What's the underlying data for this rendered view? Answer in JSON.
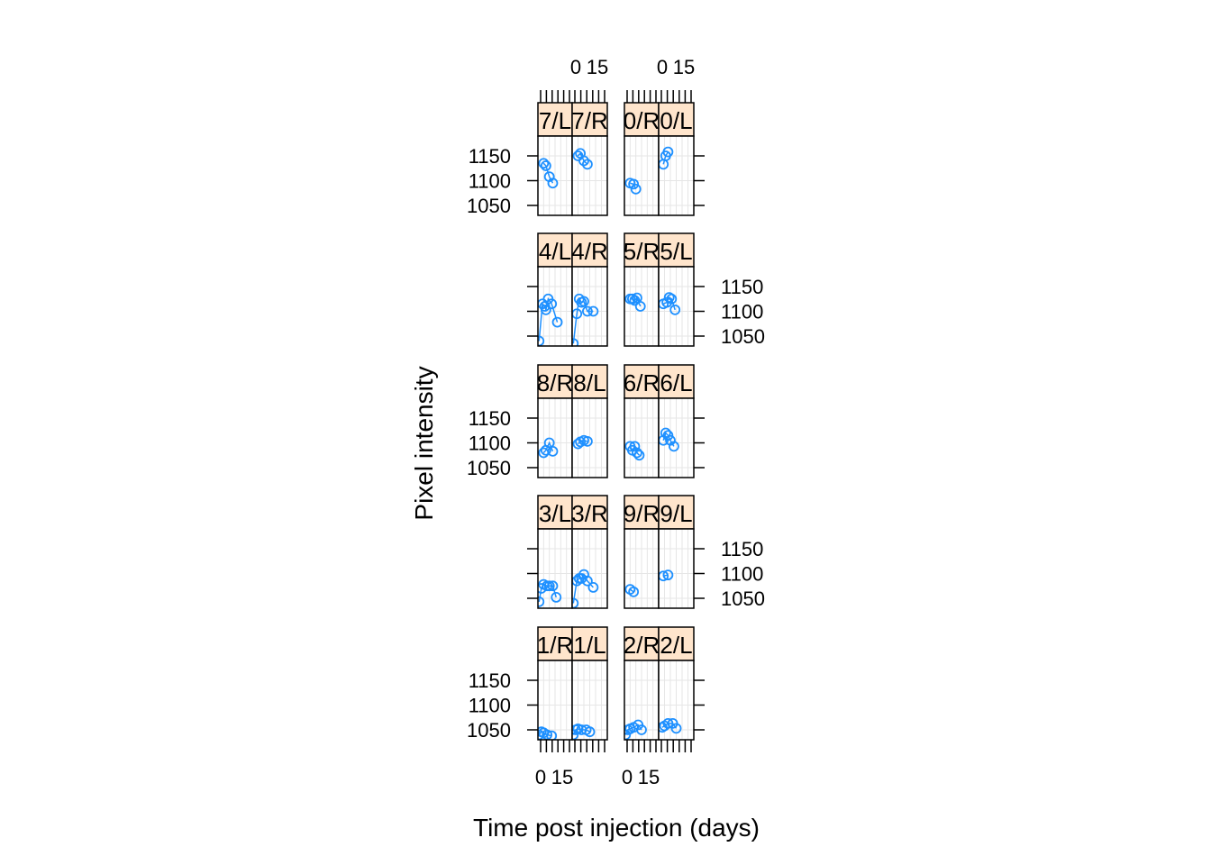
{
  "chart_data": {
    "type": "scatter",
    "xlabel": "Time post injection (days)",
    "ylabel": "Pixel intensity",
    "x_ticks": [
      "0",
      "15"
    ],
    "y_ticks": [
      1050,
      1100,
      1150
    ],
    "ylim": [
      1030,
      1190
    ],
    "xlim": [
      0,
      30
    ],
    "colors": {
      "points": "#1E90FF",
      "strip": "#FFE5CC",
      "grid": "#E6E6E6",
      "frame": "#000000"
    },
    "panels": [
      {
        "label": "1/R",
        "points": [
          {
            "x": 1,
            "y": 1040
          },
          {
            "x": 3,
            "y": 1046
          },
          {
            "x": 5,
            "y": 1044
          },
          {
            "x": 8,
            "y": 1040
          },
          {
            "x": 12,
            "y": 1038
          }
        ]
      },
      {
        "label": "1/L",
        "points": [
          {
            "x": 1,
            "y": 1040
          },
          {
            "x": 3,
            "y": 1050
          },
          {
            "x": 5,
            "y": 1052
          },
          {
            "x": 8,
            "y": 1050
          },
          {
            "x": 12,
            "y": 1050
          },
          {
            "x": 15,
            "y": 1046
          }
        ]
      },
      {
        "label": "2/R",
        "points": [
          {
            "x": 1,
            "y": 1040
          },
          {
            "x": 3,
            "y": 1050
          },
          {
            "x": 5,
            "y": 1052
          },
          {
            "x": 8,
            "y": 1055
          },
          {
            "x": 12,
            "y": 1060
          },
          {
            "x": 15,
            "y": 1050
          }
        ]
      },
      {
        "label": "2/L",
        "points": [
          {
            "x": 3,
            "y": 1055
          },
          {
            "x": 5,
            "y": 1058
          },
          {
            "x": 8,
            "y": 1063
          },
          {
            "x": 12,
            "y": 1063
          },
          {
            "x": 15,
            "y": 1053
          }
        ]
      },
      {
        "label": "3/L",
        "points": [
          {
            "x": 1,
            "y": 1043
          },
          {
            "x": 3,
            "y": 1070
          },
          {
            "x": 5,
            "y": 1078
          },
          {
            "x": 8,
            "y": 1075
          },
          {
            "x": 10,
            "y": 1075
          },
          {
            "x": 13,
            "y": 1075
          },
          {
            "x": 16,
            "y": 1052
          }
        ]
      },
      {
        "label": "3/R",
        "points": [
          {
            "x": 1,
            "y": 1040
          },
          {
            "x": 4,
            "y": 1085
          },
          {
            "x": 6,
            "y": 1090
          },
          {
            "x": 8,
            "y": 1090
          },
          {
            "x": 10,
            "y": 1098
          },
          {
            "x": 13,
            "y": 1085
          },
          {
            "x": 18,
            "y": 1072
          }
        ]
      },
      {
        "label": "9/R",
        "points": [
          {
            "x": 5,
            "y": 1068
          },
          {
            "x": 8,
            "y": 1063
          }
        ]
      },
      {
        "label": "9/L",
        "points": [
          {
            "x": 4,
            "y": 1095
          },
          {
            "x": 8,
            "y": 1097
          }
        ]
      },
      {
        "label": "8/R",
        "points": [
          {
            "x": 5,
            "y": 1080
          },
          {
            "x": 7,
            "y": 1085
          },
          {
            "x": 10,
            "y": 1100
          },
          {
            "x": 13,
            "y": 1083
          }
        ]
      },
      {
        "label": "8/L",
        "points": [
          {
            "x": 5,
            "y": 1098
          },
          {
            "x": 7,
            "y": 1102
          },
          {
            "x": 10,
            "y": 1105
          },
          {
            "x": 13,
            "y": 1103
          }
        ]
      },
      {
        "label": "6/R",
        "points": [
          {
            "x": 5,
            "y": 1093
          },
          {
            "x": 7,
            "y": 1085
          },
          {
            "x": 9,
            "y": 1093
          },
          {
            "x": 11,
            "y": 1080
          },
          {
            "x": 13,
            "y": 1075
          }
        ]
      },
      {
        "label": "6/L",
        "points": [
          {
            "x": 4,
            "y": 1105
          },
          {
            "x": 6,
            "y": 1120
          },
          {
            "x": 8,
            "y": 1115
          },
          {
            "x": 10,
            "y": 1105
          },
          {
            "x": 13,
            "y": 1093
          }
        ]
      },
      {
        "label": "4/L",
        "points": [
          {
            "x": 1,
            "y": 1040
          },
          {
            "x": 4,
            "y": 1115
          },
          {
            "x": 6,
            "y": 1110
          },
          {
            "x": 7,
            "y": 1103
          },
          {
            "x": 9,
            "y": 1125
          },
          {
            "x": 12,
            "y": 1115
          },
          {
            "x": 17,
            "y": 1078
          }
        ]
      },
      {
        "label": "4/R",
        "points": [
          {
            "x": 1,
            "y": 1035
          },
          {
            "x": 4,
            "y": 1095
          },
          {
            "x": 6,
            "y": 1125
          },
          {
            "x": 8,
            "y": 1118
          },
          {
            "x": 10,
            "y": 1120
          },
          {
            "x": 13,
            "y": 1100
          },
          {
            "x": 18,
            "y": 1100
          }
        ]
      },
      {
        "label": "5/R",
        "points": [
          {
            "x": 5,
            "y": 1125
          },
          {
            "x": 7,
            "y": 1125
          },
          {
            "x": 9,
            "y": 1122
          },
          {
            "x": 11,
            "y": 1127
          },
          {
            "x": 14,
            "y": 1110
          }
        ]
      },
      {
        "label": "5/L",
        "points": [
          {
            "x": 4,
            "y": 1115
          },
          {
            "x": 7,
            "y": 1118
          },
          {
            "x": 9,
            "y": 1128
          },
          {
            "x": 11,
            "y": 1125
          },
          {
            "x": 14,
            "y": 1103
          }
        ]
      },
      {
        "label": "7/L",
        "points": [
          {
            "x": 5,
            "y": 1135
          },
          {
            "x": 7,
            "y": 1130
          },
          {
            "x": 10,
            "y": 1108
          },
          {
            "x": 13,
            "y": 1095
          }
        ]
      },
      {
        "label": "7/R",
        "points": [
          {
            "x": 5,
            "y": 1150
          },
          {
            "x": 7,
            "y": 1155
          },
          {
            "x": 10,
            "y": 1140
          },
          {
            "x": 13,
            "y": 1133
          }
        ]
      },
      {
        "label": "0/R",
        "points": [
          {
            "x": 5,
            "y": 1095
          },
          {
            "x": 8,
            "y": 1093
          },
          {
            "x": 10,
            "y": 1083
          }
        ]
      },
      {
        "label": "0/L",
        "points": [
          {
            "x": 4,
            "y": 1133
          },
          {
            "x": 6,
            "y": 1150
          },
          {
            "x": 8,
            "y": 1158
          }
        ]
      }
    ]
  }
}
